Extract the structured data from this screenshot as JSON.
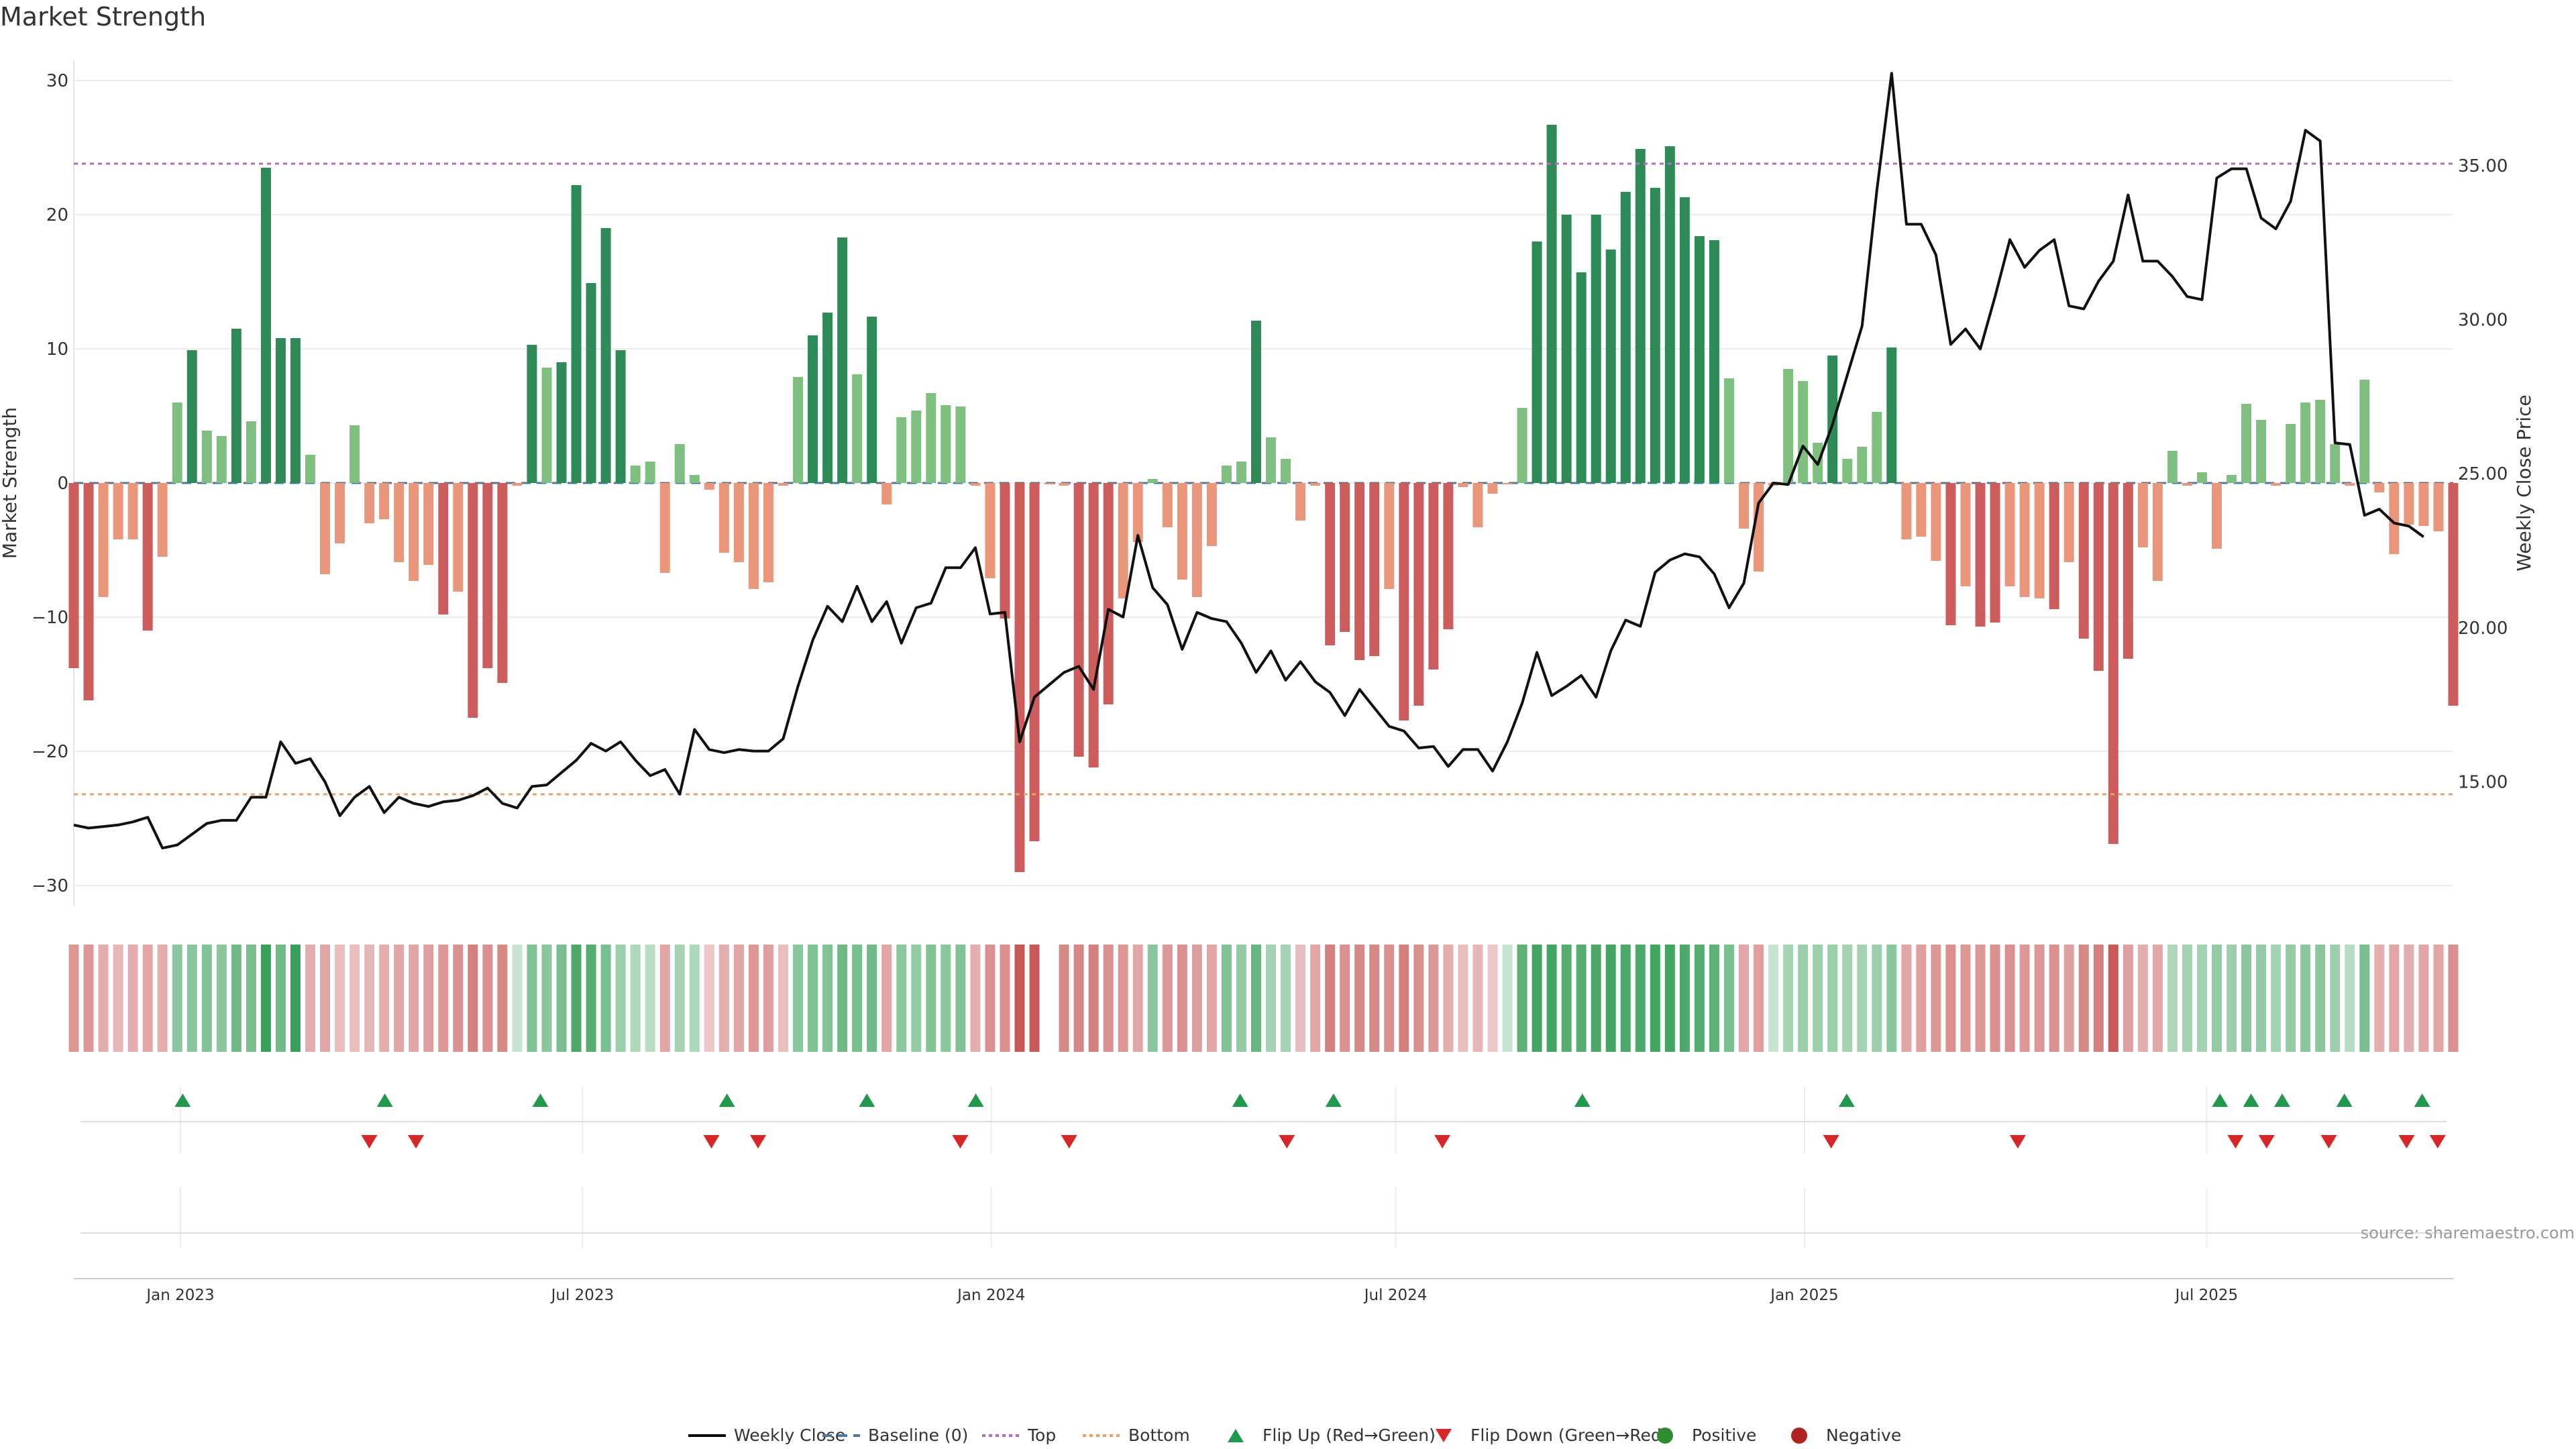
{
  "chart_data": {
    "type": "bar",
    "title": "Market Strength",
    "ylabel": "Market Strength",
    "y2label": "Weekly Close Price",
    "ylim": [
      -31,
      31
    ],
    "y2lim": [
      11.2,
      38.2
    ],
    "yticks": [
      -30,
      -20,
      -10,
      0,
      10,
      20,
      30
    ],
    "y2ticks": [
      "15.00",
      "20.00",
      "25.00",
      "30.00",
      "35.00"
    ],
    "x_start": "2022-11-14",
    "x_end": "2025-10-20",
    "xticks": [
      {
        "label": "Jan 2023",
        "date": "2023-01-01"
      },
      {
        "label": "Jul 2023",
        "date": "2023-07-01"
      },
      {
        "label": "Jan 2024",
        "date": "2024-01-01"
      },
      {
        "label": "Jul 2024",
        "date": "2024-07-01"
      },
      {
        "label": "Jan 2025",
        "date": "2025-01-01"
      },
      {
        "label": "Jul 2025",
        "date": "2025-07-01"
      }
    ],
    "top_threshold": 23.8,
    "bottom_threshold": -23.2,
    "grid": true,
    "legend_position": "bottom",
    "source": "source: sharemaestro.com",
    "strength": [
      -13.8,
      -16.2,
      -8.5,
      -4.2,
      -4.2,
      -11.0,
      -5.5,
      6.0,
      9.9,
      3.9,
      3.5,
      11.5,
      4.6,
      23.5,
      10.8,
      10.8,
      2.1,
      -6.8,
      -4.5,
      4.3,
      -3.0,
      -2.7,
      -5.9,
      -7.3,
      -6.1,
      -9.8,
      -8.1,
      -17.5,
      -13.8,
      -14.9,
      -0.2,
      10.3,
      8.6,
      9.0,
      22.2,
      14.9,
      19.0,
      9.9,
      1.3,
      1.6,
      -6.7,
      2.9,
      0.6,
      -0.5,
      -5.2,
      -5.9,
      -7.9,
      -7.4,
      -0.2,
      7.9,
      11.0,
      12.7,
      18.3,
      8.1,
      12.4,
      -1.6,
      4.9,
      5.4,
      6.7,
      5.8,
      5.7,
      -0.2,
      -7.1,
      -10.1,
      -29.0,
      -26.7,
      -0.1,
      -0.2,
      -20.4,
      -21.2,
      -16.5,
      -8.6,
      -4.4,
      0.3,
      -3.3,
      -7.2,
      -8.5,
      -4.7,
      1.3,
      1.6,
      12.1,
      3.4,
      1.8,
      -2.8,
      -0.2,
      -12.1,
      -11.1,
      -13.2,
      -12.9,
      -7.9,
      -17.7,
      -16.6,
      -13.9,
      -10.9,
      -0.3,
      -3.3,
      -0.8,
      -0.1,
      5.6,
      18.0,
      26.7,
      20.0,
      15.7,
      20.0,
      17.4,
      21.7,
      24.9,
      22.0,
      25.1,
      21.3,
      18.4,
      18.1,
      7.8,
      -3.4,
      -6.6,
      -0.2,
      8.5,
      7.6,
      3.0,
      9.5,
      1.8,
      2.7,
      5.3,
      10.1,
      -4.2,
      -4.0,
      -5.8,
      -10.6,
      -7.7,
      -10.7,
      -10.4,
      -7.7,
      -8.5,
      -8.6,
      -9.4,
      -5.9,
      -11.6,
      -14.0,
      -26.9,
      -13.1,
      -4.8,
      -7.3,
      2.4,
      -0.2,
      0.8,
      -4.9,
      0.6,
      5.9,
      4.7,
      -0.2,
      4.4,
      6.0,
      6.2,
      2.9,
      -0.2,
      7.7,
      -0.7,
      -5.3,
      -3.1,
      -3.2,
      -3.6,
      -16.6
    ],
    "weekly_close": [
      13.6,
      13.5,
      13.55,
      13.6,
      13.7,
      13.85,
      12.85,
      12.95,
      13.3,
      13.65,
      13.75,
      13.75,
      14.5,
      14.5,
      16.3,
      15.6,
      15.75,
      15.0,
      13.9,
      14.5,
      14.85,
      14.0,
      14.5,
      14.3,
      14.2,
      14.35,
      14.4,
      14.55,
      14.8,
      14.3,
      14.15,
      14.85,
      14.9,
      15.3,
      15.7,
      16.25,
      16.0,
      16.3,
      15.7,
      15.2,
      15.4,
      14.6,
      16.7,
      16.05,
      15.95,
      16.05,
      16.0,
      16.0,
      16.4,
      18.1,
      19.6,
      20.7,
      20.2,
      21.35,
      20.2,
      20.85,
      19.5,
      20.65,
      20.8,
      21.95,
      21.95,
      22.6,
      20.45,
      20.5,
      16.3,
      17.75,
      18.15,
      18.55,
      18.75,
      18.0,
      20.6,
      20.35,
      23.0,
      21.3,
      20.75,
      19.3,
      20.5,
      20.3,
      20.2,
      19.5,
      18.55,
      19.25,
      18.3,
      18.9,
      18.25,
      17.9,
      17.15,
      18.0,
      17.4,
      16.8,
      16.65,
      16.1,
      16.15,
      15.5,
      16.05,
      16.05,
      15.35,
      16.3,
      17.55,
      19.2,
      17.8,
      18.1,
      18.45,
      17.75,
      19.25,
      20.25,
      20.05,
      21.8,
      22.2,
      22.4,
      22.3,
      21.75,
      20.65,
      21.45,
      24.05,
      24.7,
      24.65,
      25.9,
      25.3,
      26.6,
      28.2,
      29.8,
      34.2,
      38.0,
      33.1,
      33.1,
      32.1,
      29.2,
      29.7,
      29.05,
      30.75,
      32.6,
      31.7,
      32.25,
      32.6,
      30.45,
      30.35,
      31.25,
      31.9,
      34.05,
      31.9,
      31.9,
      31.4,
      30.75,
      30.65,
      34.6,
      34.9,
      34.9,
      33.3,
      32.95,
      33.85,
      36.15,
      35.8,
      26.0,
      25.95,
      23.65,
      23.85,
      23.4,
      23.3,
      22.95
    ],
    "momentum": [
      -0.45,
      -0.45,
      -0.3,
      -0.25,
      -0.3,
      -0.35,
      -0.3,
      0.45,
      0.45,
      0.5,
      0.45,
      0.6,
      0.55,
      1.0,
      0.6,
      0.9,
      -0.3,
      -0.35,
      -0.2,
      -0.2,
      -0.25,
      -0.3,
      -0.35,
      -0.35,
      -0.4,
      -0.45,
      -0.5,
      -0.6,
      -0.5,
      -0.55,
      0.1,
      0.5,
      0.45,
      0.55,
      0.8,
      0.75,
      0.55,
      0.35,
      0.25,
      0.2,
      -0.35,
      0.3,
      0.25,
      -0.15,
      -0.3,
      -0.35,
      -0.45,
      -0.4,
      -0.2,
      0.45,
      0.5,
      0.5,
      0.6,
      0.55,
      0.6,
      -0.35,
      0.45,
      0.4,
      0.5,
      0.45,
      0.5,
      -0.3,
      -0.5,
      -0.5,
      -0.85,
      -0.85,
      null,
      -0.55,
      -0.55,
      -0.6,
      -0.5,
      -0.45,
      -0.35,
      0.45,
      -0.45,
      -0.5,
      -0.4,
      -0.35,
      0.5,
      0.4,
      0.65,
      0.3,
      0.3,
      -0.2,
      -0.35,
      -0.6,
      -0.5,
      -0.55,
      -0.55,
      -0.5,
      -0.6,
      -0.5,
      -0.45,
      -0.3,
      -0.2,
      -0.25,
      -0.15,
      0.1,
      0.7,
      0.85,
      0.85,
      0.75,
      0.75,
      0.8,
      0.85,
      0.8,
      0.8,
      0.85,
      0.85,
      0.8,
      0.75,
      0.7,
      0.55,
      -0.35,
      -0.4,
      0.1,
      0.3,
      0.35,
      0.35,
      0.35,
      0.3,
      0.3,
      0.35,
      0.45,
      -0.35,
      -0.4,
      -0.45,
      -0.5,
      -0.45,
      -0.45,
      -0.5,
      -0.5,
      -0.45,
      -0.45,
      -0.5,
      -0.4,
      -0.55,
      -0.6,
      -0.85,
      -0.4,
      -0.3,
      -0.35,
      0.25,
      0.3,
      0.3,
      0.4,
      0.35,
      0.45,
      0.4,
      0.3,
      0.4,
      0.45,
      0.45,
      0.35,
      0.2,
      0.55,
      -0.3,
      -0.35,
      -0.3,
      -0.35,
      -0.35,
      -0.5
    ],
    "flip_up": [
      "2023-01-02",
      "2023-04-03",
      "2023-06-12",
      "2023-09-04",
      "2023-11-06",
      "2023-12-25",
      "2024-04-22",
      "2024-06-03",
      "2024-09-23",
      "2025-01-20",
      "2025-07-07",
      "2025-07-21",
      "2025-08-04",
      "2025-09-01",
      "2025-10-06"
    ],
    "flip_down": [
      "2023-03-27",
      "2023-04-17",
      "2023-08-28",
      "2023-09-18",
      "2023-12-18",
      "2024-02-05",
      "2024-05-13",
      "2024-07-22",
      "2025-01-13",
      "2025-04-07",
      "2025-07-14",
      "2025-07-28",
      "2025-08-25",
      "2025-09-29",
      "2025-10-13"
    ],
    "legend": [
      {
        "label": "Weekly Close",
        "kind": "line",
        "color": "#000000"
      },
      {
        "label": "Baseline (0)",
        "kind": "dash",
        "color": "#4c78a8"
      },
      {
        "label": "Top",
        "kind": "dot",
        "color": "#b36bc2"
      },
      {
        "label": "Bottom",
        "kind": "dot",
        "color": "#e8a06a"
      },
      {
        "label": "Flip Up (Red→Green)",
        "kind": "tri-up",
        "color": "#1e9b4a"
      },
      {
        "label": "Flip Down (Green→Red)",
        "kind": "tri-down",
        "color": "#d62728"
      },
      {
        "label": "Positive",
        "kind": "dot-marker",
        "color": "#2e8b2e"
      },
      {
        "label": "Negative",
        "kind": "dot-marker",
        "color": "#b22222"
      }
    ]
  },
  "colors": {
    "pos_strong": "#2e8b57",
    "pos_weak": "#7fbf7f",
    "neg_strong": "#cd5c5c",
    "neg_weak": "#e9967a",
    "price_line": "#111111",
    "top_line": "#b36bc2",
    "bottom_line": "#e8a06a",
    "baseline": "#4c78a8",
    "flip_up": "#1e9b4a",
    "flip_down": "#d62728"
  }
}
